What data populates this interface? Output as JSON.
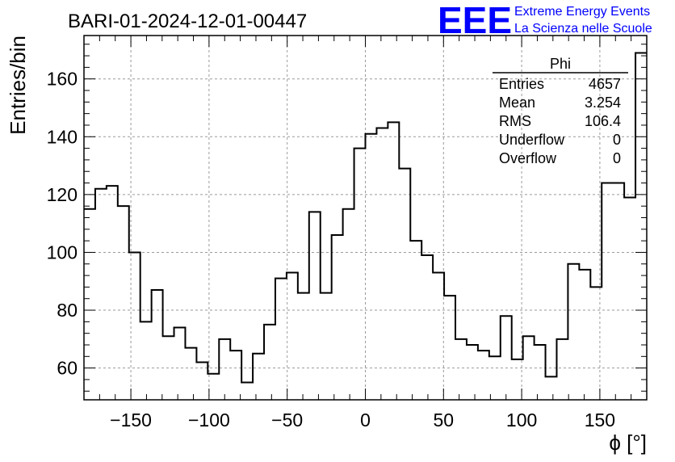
{
  "title": "BARI-01-2024-12-01-00447",
  "logo": {
    "mark": "EEE",
    "line1": "Extreme Energy Events",
    "line2": "La Scienza nelle Scuole",
    "color": "#0000ff"
  },
  "stats": {
    "name": "Phi",
    "rows": [
      {
        "label": "Entries",
        "value": "4657"
      },
      {
        "label": "Mean",
        "value": "3.254"
      },
      {
        "label": "RMS",
        "value": "106.4"
      },
      {
        "label": "Underflow",
        "value": "0"
      },
      {
        "label": "Overflow",
        "value": "0"
      }
    ]
  },
  "chart_data": {
    "type": "histogram",
    "title": "BARI-01-2024-12-01-00447",
    "xlabel": "ϕ [°]",
    "ylabel": "Entries/bin",
    "xlim": [
      -180,
      180
    ],
    "ylim": [
      49,
      175
    ],
    "bin_width": 7.2,
    "xticks": [
      -150,
      -100,
      -50,
      0,
      50,
      100,
      150
    ],
    "yticks": [
      60,
      80,
      100,
      120,
      140,
      160
    ],
    "grid": true,
    "line_color": "#000000",
    "values": [
      115,
      122,
      123,
      116,
      100,
      76,
      87,
      71,
      74,
      67,
      62,
      58,
      70,
      66,
      55,
      65,
      75,
      91,
      93,
      86,
      114,
      86,
      106,
      115,
      136,
      141,
      143,
      145,
      129,
      104,
      99,
      93,
      85,
      70,
      68,
      66,
      64,
      78,
      63,
      71,
      68,
      57,
      70,
      96,
      94,
      88,
      124,
      124,
      119,
      169
    ]
  }
}
